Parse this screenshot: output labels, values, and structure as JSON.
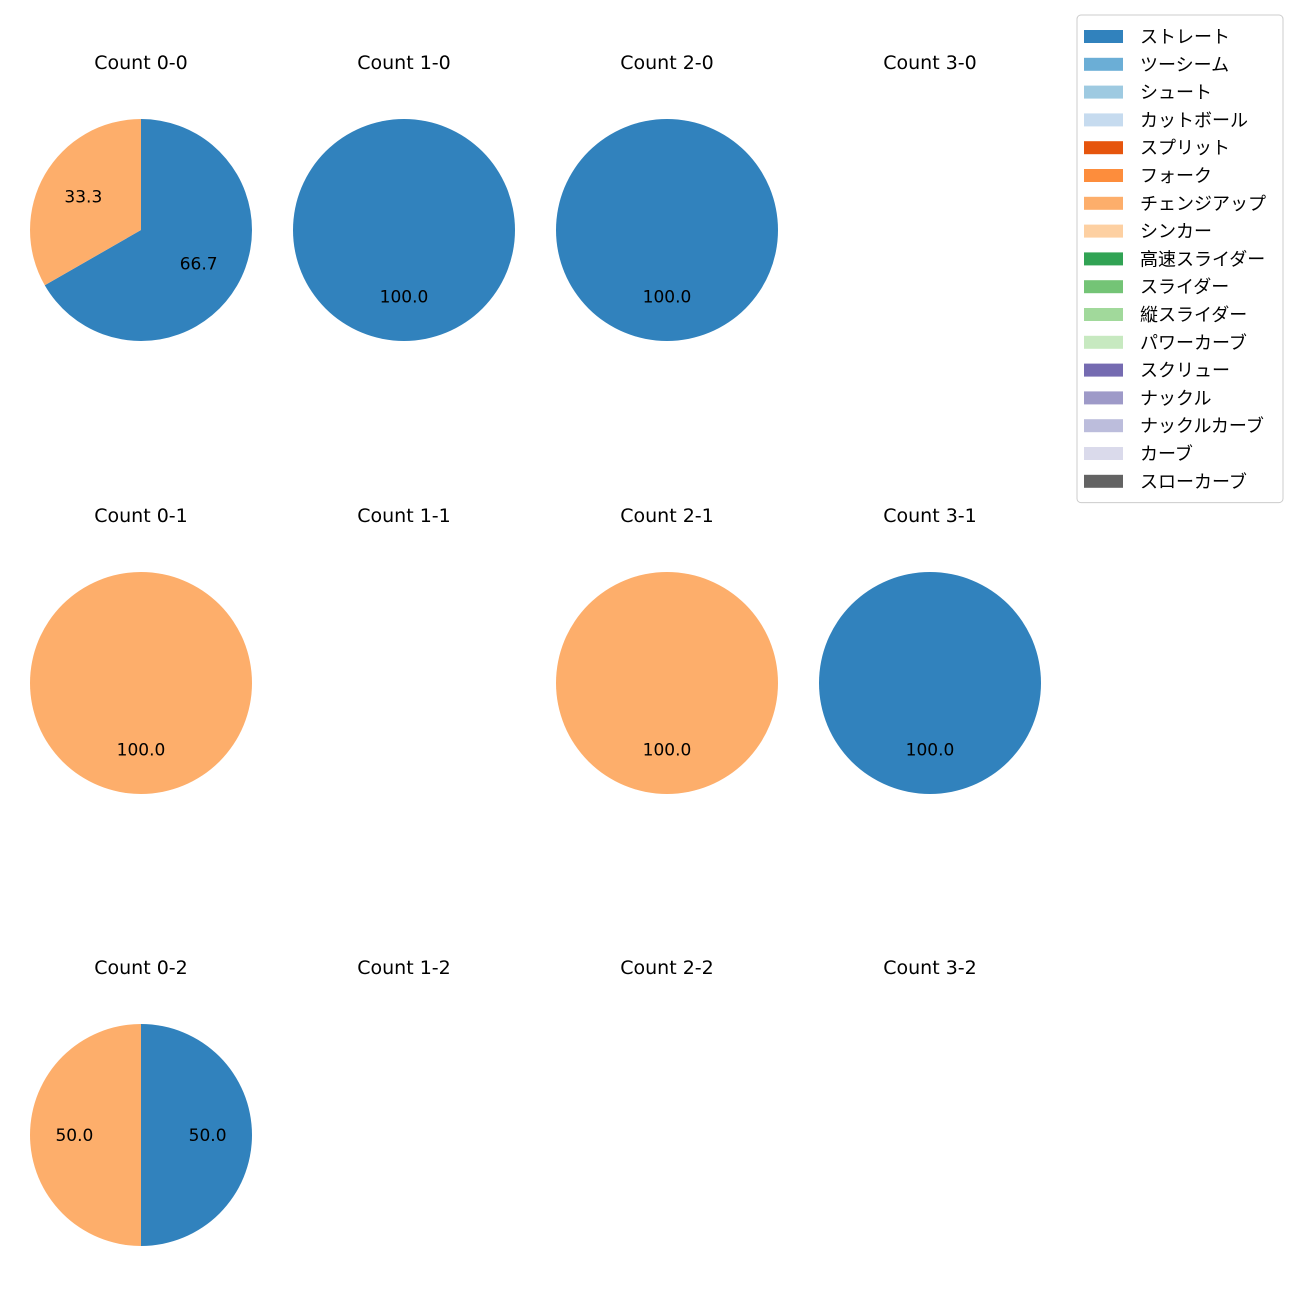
{
  "chart_data": {
    "type": "pie",
    "subplots": [
      {
        "title": "Count 0-0",
        "slices": [
          {
            "label": "ストレート",
            "value": 66.7
          },
          {
            "label": "チェンジアップ",
            "value": 33.3
          }
        ]
      },
      {
        "title": "Count 1-0",
        "slices": [
          {
            "label": "ストレート",
            "value": 100.0
          }
        ]
      },
      {
        "title": "Count 2-0",
        "slices": [
          {
            "label": "ストレート",
            "value": 100.0
          }
        ]
      },
      {
        "title": "Count 3-0",
        "slices": []
      },
      {
        "title": "Count 0-1",
        "slices": [
          {
            "label": "チェンジアップ",
            "value": 100.0
          }
        ]
      },
      {
        "title": "Count 1-1",
        "slices": []
      },
      {
        "title": "Count 2-1",
        "slices": [
          {
            "label": "チェンジアップ",
            "value": 100.0
          }
        ]
      },
      {
        "title": "Count 3-1",
        "slices": [
          {
            "label": "ストレート",
            "value": 100.0
          }
        ]
      },
      {
        "title": "Count 0-2",
        "slices": [
          {
            "label": "ストレート",
            "value": 50.0
          },
          {
            "label": "チェンジアップ",
            "value": 50.0
          }
        ]
      },
      {
        "title": "Count 1-2",
        "slices": []
      },
      {
        "title": "Count 2-2",
        "slices": []
      },
      {
        "title": "Count 3-2",
        "slices": []
      }
    ],
    "legend": {
      "placement": "top-right",
      "entries": [
        {
          "label": "ストレート",
          "color": "#3182bd"
        },
        {
          "label": "ツーシーム",
          "color": "#6baed6"
        },
        {
          "label": "シュート",
          "color": "#9ecae1"
        },
        {
          "label": "カットボール",
          "color": "#c6dbef"
        },
        {
          "label": "スプリット",
          "color": "#e6550d"
        },
        {
          "label": "フォーク",
          "color": "#fd8d3c"
        },
        {
          "label": "チェンジアップ",
          "color": "#fdae6b"
        },
        {
          "label": "シンカー",
          "color": "#fdd0a2"
        },
        {
          "label": "高速スライダー",
          "color": "#31a354"
        },
        {
          "label": "スライダー",
          "color": "#74c476"
        },
        {
          "label": "縦スライダー",
          "color": "#a1d99b"
        },
        {
          "label": "パワーカーブ",
          "color": "#c7e9c0"
        },
        {
          "label": "スクリュー",
          "color": "#756bb1"
        },
        {
          "label": "ナックル",
          "color": "#9e9ac8"
        },
        {
          "label": "ナックルカーブ",
          "color": "#bcbddc"
        },
        {
          "label": "カーブ",
          "color": "#dadaeb"
        },
        {
          "label": "スローカーブ",
          "color": "#636363"
        }
      ]
    }
  }
}
